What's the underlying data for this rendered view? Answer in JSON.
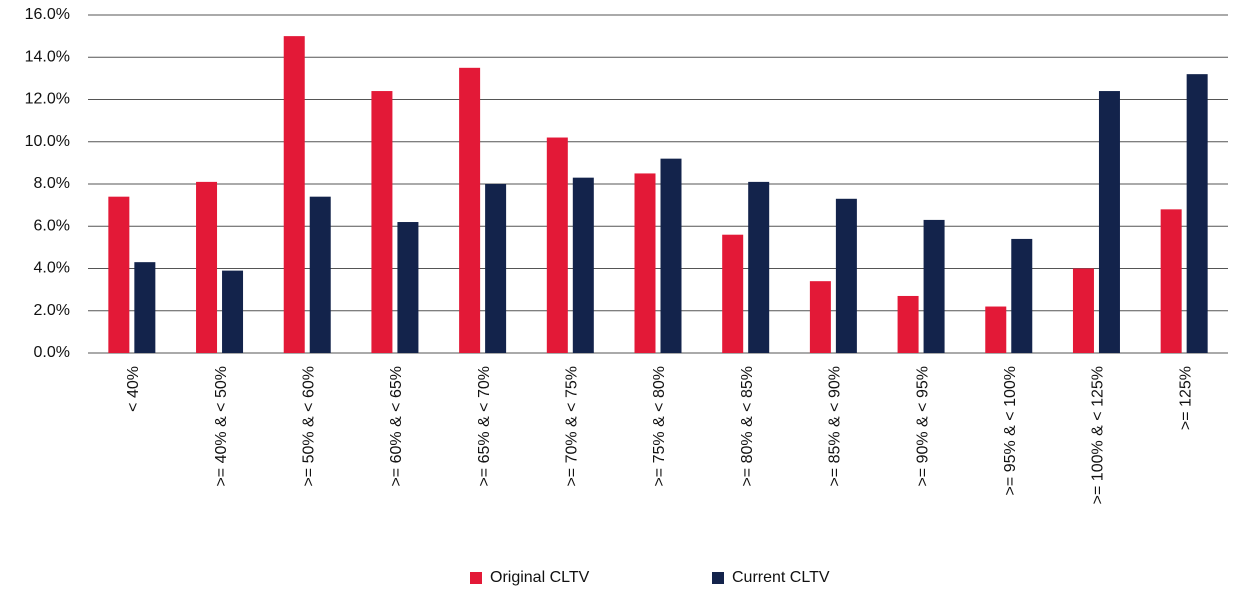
{
  "chart_data": {
    "type": "bar",
    "categories": [
      "< 40%",
      ">= 40% & < 50%",
      ">= 50% & < 60%",
      ">= 60% & < 65%",
      ">= 65% & < 70%",
      ">= 70% & < 75%",
      ">= 75% & < 80%",
      ">= 80% & < 85%",
      ">= 85% & < 90%",
      ">= 90% & < 95%",
      ">= 95% & < 100%",
      ">= 100% & < 125%",
      ">= 125%"
    ],
    "series": [
      {
        "name": "Original CLTV",
        "color": "#e31937",
        "values": [
          7.4,
          8.1,
          15.0,
          12.4,
          13.5,
          10.2,
          8.5,
          5.6,
          3.4,
          2.7,
          2.2,
          4.0,
          6.8
        ]
      },
      {
        "name": "Current CLTV",
        "color": "#13234b",
        "values": [
          4.3,
          3.9,
          7.4,
          6.2,
          8.0,
          8.3,
          9.2,
          8.1,
          7.3,
          6.3,
          5.4,
          12.4,
          13.2
        ]
      }
    ],
    "ylim": [
      0,
      16
    ],
    "yticks": [
      {
        "value": 0,
        "label": "0.0%"
      },
      {
        "value": 2,
        "label": "2.0%"
      },
      {
        "value": 4,
        "label": "4.0%"
      },
      {
        "value": 6,
        "label": "6.0%"
      },
      {
        "value": 8,
        "label": "8.0%"
      },
      {
        "value": 10,
        "label": "10.0%"
      },
      {
        "value": 12,
        "label": "12.0%"
      },
      {
        "value": 14,
        "label": "14.0%"
      },
      {
        "value": 16,
        "label": "16.0%"
      }
    ],
    "grid": true,
    "legend": "bottom"
  }
}
